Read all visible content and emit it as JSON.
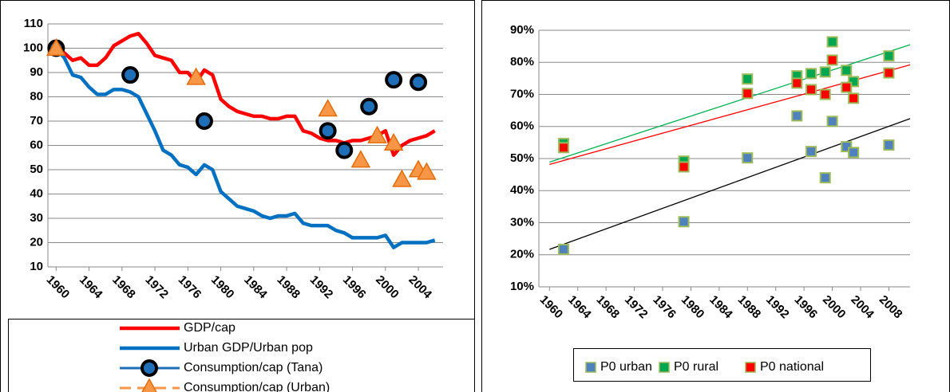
{
  "chart_data": [
    {
      "type": "line",
      "xlim": [
        1959,
        2007
      ],
      "xticks": [
        1960,
        1964,
        1968,
        1972,
        1976,
        1980,
        1984,
        1988,
        1992,
        1996,
        2000,
        2004
      ],
      "ylim": [
        10,
        110
      ],
      "yticks": [
        10,
        20,
        30,
        40,
        50,
        60,
        70,
        80,
        90,
        100,
        110
      ],
      "grid": true,
      "legend": "bottom",
      "series": [
        {
          "name": "GDP/cap",
          "color": "#ff0000",
          "style": "line",
          "x": [
            1960,
            1961,
            1962,
            1963,
            1964,
            1965,
            1966,
            1967,
            1968,
            1969,
            1970,
            1971,
            1972,
            1973,
            1974,
            1975,
            1976,
            1977,
            1978,
            1979,
            1980,
            1981,
            1982,
            1983,
            1984,
            1985,
            1986,
            1987,
            1988,
            1989,
            1990,
            1991,
            1992,
            1993,
            1994,
            1995,
            1996,
            1997,
            1998,
            1999,
            2000,
            2001,
            2002,
            2003,
            2004,
            2005,
            2006
          ],
          "values": [
            100,
            98,
            95,
            96,
            93,
            93,
            96,
            101,
            103,
            105,
            106,
            102,
            97,
            96,
            95,
            90,
            90,
            86,
            91,
            89,
            79,
            76,
            74,
            73,
            72,
            72,
            71,
            71,
            72,
            72,
            66,
            65,
            63,
            62,
            62,
            61,
            62,
            62,
            63,
            64,
            66,
            56,
            60,
            62,
            63,
            64,
            66
          ]
        },
        {
          "name": "Urban GDP/Urban pop",
          "color": "#0070c0",
          "style": "line",
          "x": [
            1960,
            1961,
            1962,
            1963,
            1964,
            1965,
            1966,
            1967,
            1968,
            1969,
            1970,
            1971,
            1972,
            1973,
            1974,
            1975,
            1976,
            1977,
            1978,
            1979,
            1980,
            1981,
            1982,
            1983,
            1984,
            1985,
            1986,
            1987,
            1988,
            1989,
            1990,
            1991,
            1992,
            1993,
            1994,
            1995,
            1996,
            1997,
            1998,
            1999,
            2000,
            2001,
            2002,
            2003,
            2004,
            2005,
            2006
          ],
          "values": [
            100,
            96,
            89,
            88,
            84,
            81,
            81,
            83,
            83,
            82,
            80,
            73,
            66,
            58,
            56,
            52,
            51,
            48,
            52,
            50,
            41,
            38,
            35,
            34,
            33,
            31,
            30,
            31,
            31,
            32,
            28,
            27,
            27,
            27,
            25,
            24,
            22,
            22,
            22,
            22,
            23,
            18,
            20,
            20,
            20,
            20,
            21
          ]
        },
        {
          "name": "Consumption/cap (Tana)",
          "color": "#1f6fb8",
          "style": "marker",
          "marker": "circle",
          "x": [
            1960,
            1969,
            1978,
            1993,
            1995,
            1998,
            2001,
            2004
          ],
          "values": [
            100,
            89,
            70,
            66,
            58,
            76,
            87,
            86
          ]
        },
        {
          "name": "Consumption/cap (Urban)",
          "color": "#f79646",
          "style": "marker",
          "marker": "triangle",
          "x": [
            1960,
            1977,
            1993,
            1997,
            1999,
            2001,
            2002,
            2004,
            2005
          ],
          "values": [
            100,
            88,
            75,
            54,
            64,
            61,
            46,
            50,
            49
          ]
        }
      ]
    },
    {
      "type": "scatter",
      "xlim": [
        1958.5,
        2011
      ],
      "xticks": [
        1960,
        1964,
        1968,
        1972,
        1976,
        1980,
        1984,
        1988,
        1992,
        1996,
        2000,
        2004,
        2008
      ],
      "ylim": [
        10,
        90
      ],
      "yticks": [
        {
          "value": 10,
          "label": "10%"
        },
        {
          "value": 20,
          "label": "20%"
        },
        {
          "value": 30,
          "label": "30%"
        },
        {
          "value": 40,
          "label": "40%"
        },
        {
          "value": 50,
          "label": "50%"
        },
        {
          "value": 60,
          "label": "60%"
        },
        {
          "value": 70,
          "label": "70%"
        },
        {
          "value": 80,
          "label": "80%"
        },
        {
          "value": 90,
          "label": "90%"
        }
      ],
      "grid": true,
      "legend": "bottom",
      "trendline": true,
      "series": [
        {
          "name": "P0 urban",
          "color": "#4f81bd",
          "trend_color": "#000000",
          "x": [
            1962,
            1979,
            1988,
            1995,
            1997,
            1999,
            2000,
            2002,
            2003,
            2008
          ],
          "values": [
            21.7,
            30.3,
            50.2,
            63.3,
            52.2,
            44,
            61.6,
            53.7,
            51.9,
            54.2
          ]
        },
        {
          "name": "P0 rural",
          "color": "#00a650",
          "trend_color": "#00b050",
          "x": [
            1962,
            1979,
            1988,
            1995,
            1997,
            1999,
            2000,
            2002,
            2003,
            2008
          ],
          "values": [
            54.7,
            49.2,
            74.8,
            75.8,
            76.5,
            77,
            86.4,
            77.5,
            74,
            82
          ]
        },
        {
          "name": "P0 national",
          "color": "#ff0000",
          "trend_color": "#ff0000",
          "x": [
            1962,
            1979,
            1988,
            1995,
            1997,
            1999,
            2000,
            2002,
            2003,
            2008
          ],
          "values": [
            53.4,
            47.4,
            70.3,
            73.5,
            71.5,
            70,
            80.7,
            72.2,
            68.8,
            76.7
          ]
        }
      ]
    }
  ]
}
